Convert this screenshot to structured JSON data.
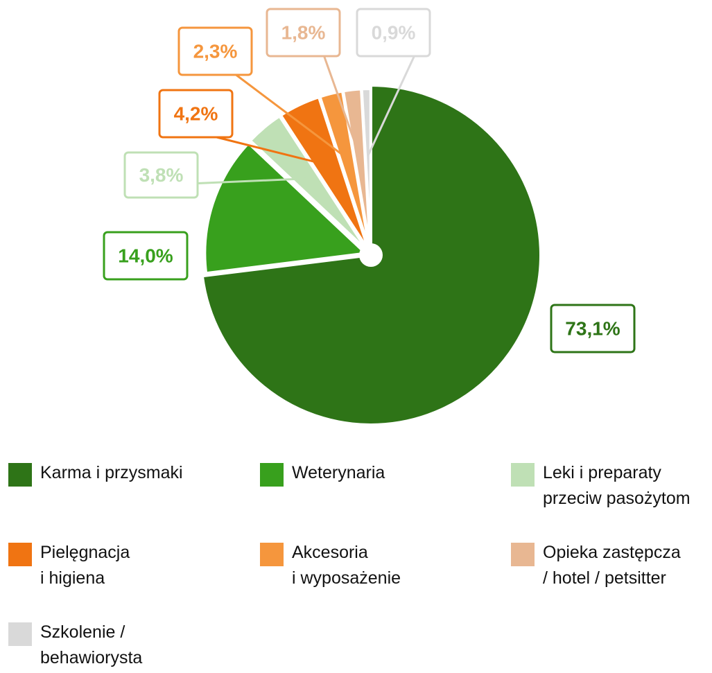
{
  "chart_data": {
    "type": "pie",
    "categories": [
      "Karma i przysmaki",
      "Weterynaria",
      "Leki i preparaty\nprzeciw pasożytom",
      "Pielęgnacja\ni higiena",
      "Akcesoria\ni wyposażenie",
      "Opieka zastępcza\n/ hotel / petsitter",
      "Szkolenie /\nbehawiorysta"
    ],
    "values": [
      73.1,
      14.0,
      3.8,
      4.2,
      2.3,
      1.8,
      0.9
    ],
    "value_labels": [
      "73,1%",
      "14,0%",
      "3,8%",
      "4,2%",
      "2,3%",
      "1,8%",
      "0,9%"
    ],
    "colors": [
      "#2e7417",
      "#38a01d",
      "#bfe0b5",
      "#f07412",
      "#f5963d",
      "#e8b792",
      "#d9d9d9"
    ]
  }
}
